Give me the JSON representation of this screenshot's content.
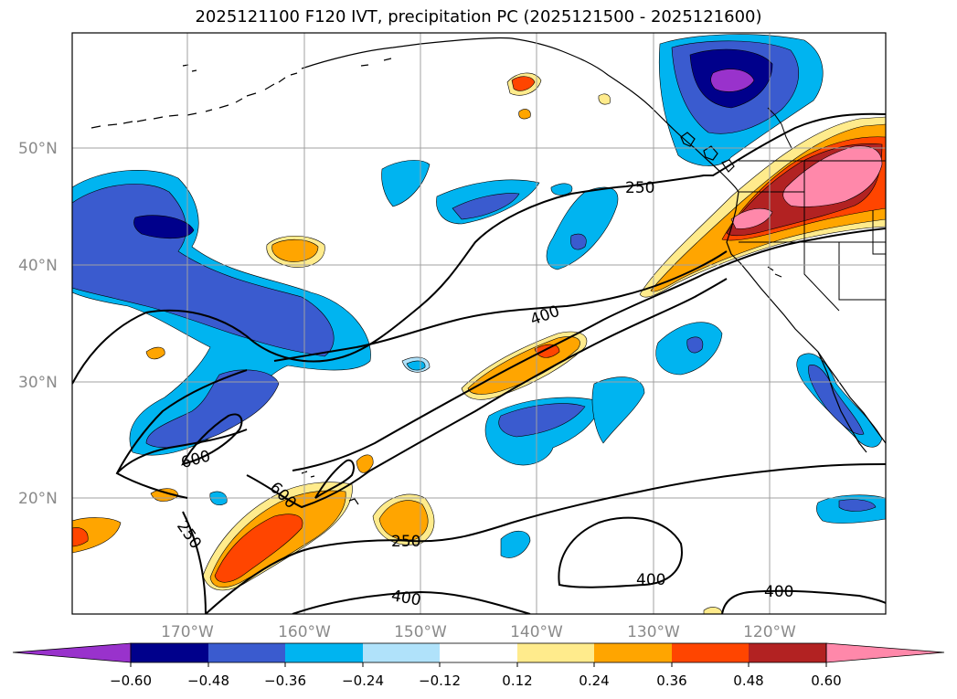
{
  "title": "2025121100 F120 IVT, precipitation PC (2025121500 - 2025121600)",
  "lat_labels": [
    "50°N",
    "40°N",
    "30°N",
    "20°N"
  ],
  "lon_labels": [
    "170°W",
    "160°W",
    "150°W",
    "140°W",
    "130°W",
    "120°W"
  ],
  "contour_labels": {
    "c250_a": "250",
    "c250_b": "250",
    "c250_c": "250",
    "c400_a": "400",
    "c400_b": "400",
    "c400_c": "400",
    "c400_d": "400",
    "c600_a": "600",
    "c600_b": "600"
  },
  "colorbar": {
    "ticks": [
      "−0.60",
      "−0.48",
      "−0.36",
      "−0.24",
      "−0.12",
      "0.12",
      "0.24",
      "0.36",
      "0.48",
      "0.60"
    ],
    "colors": [
      "#9932cc",
      "#00008b",
      "#3a5bcf",
      "#00b4f0",
      "#b0e2fa",
      "#ffffff",
      "#ffeb8c",
      "#ffa500",
      "#ff4500",
      "#b22222",
      "#ff88aa"
    ]
  },
  "colors": {
    "dpurple": "#9932cc",
    "dnavy": "#00008b",
    "dblue": "#3a5bcf",
    "dcyan": "#00b4f0",
    "dlight": "#b0e2fa",
    "pyellow": "#ffeb8c",
    "porange": "#ffa500",
    "pred": "#ff4500",
    "pbrick": "#b22222",
    "ppink": "#ff88aa"
  }
}
